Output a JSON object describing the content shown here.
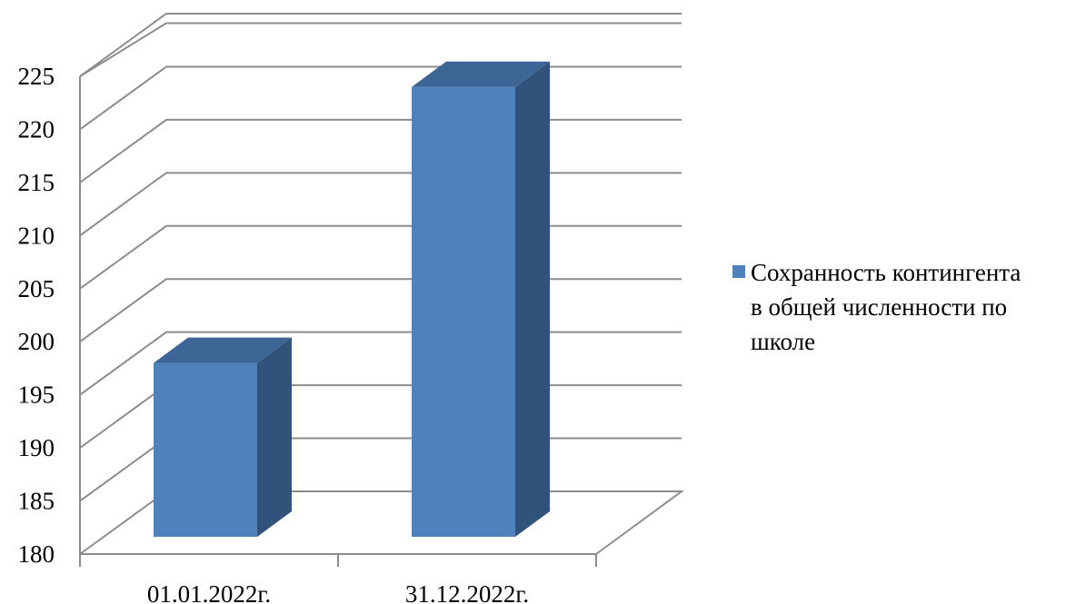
{
  "chart_data": {
    "type": "bar",
    "title": "",
    "xlabel": "",
    "ylabel": "",
    "categories": [
      "01.01.2022г.",
      "31.12.2022г."
    ],
    "series": [
      {
        "name": "Сохранность контингента в общей численности по школе",
        "values": [
          198,
          224
        ],
        "color": "#4F81BD",
        "side_color": "#31527B",
        "top_color": "#3D6596"
      }
    ],
    "ylim": [
      180,
      225
    ],
    "ytick_step": 5,
    "yticks": [
      "180",
      "185",
      "190",
      "195",
      "200",
      "205",
      "210",
      "215",
      "220",
      "225"
    ],
    "grid": true,
    "three_d": true,
    "legend": {
      "position": "right",
      "lines": [
        "Сохранность контингента",
        "в общей численности по",
        "школе"
      ]
    }
  }
}
